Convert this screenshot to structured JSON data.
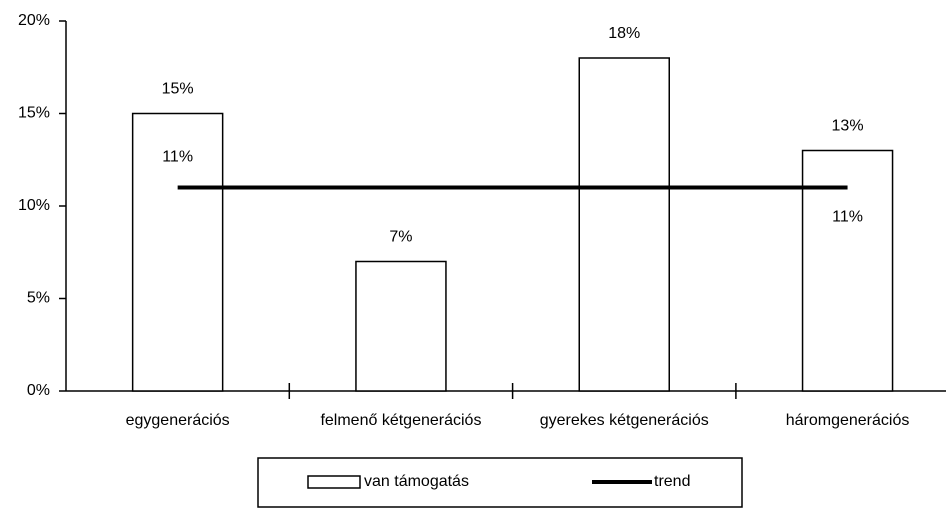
{
  "chart_data": {
    "type": "bar",
    "categories": [
      "egygenerációs",
      "felmenő kétgenerációs",
      "gyerekes kétgenerációs",
      "háromgenerációs"
    ],
    "series": [
      {
        "name": "van támogatás",
        "type": "bar",
        "color": "#ffffff",
        "values": [
          15,
          7,
          18,
          13
        ],
        "value_labels": [
          "15%",
          "7%",
          "18%",
          "13%"
        ]
      },
      {
        "name": "trend",
        "type": "line",
        "color": "#000000",
        "values": [
          11,
          11,
          11,
          11
        ],
        "value_labels": [
          "11%",
          null,
          null,
          "11%"
        ]
      }
    ],
    "ylim": [
      0,
      20
    ],
    "yticks": [
      {
        "value": 0,
        "label": "0%"
      },
      {
        "value": 5,
        "label": "5%"
      },
      {
        "value": 10,
        "label": "10%"
      },
      {
        "value": 15,
        "label": "15%"
      },
      {
        "value": 20,
        "label": "20%"
      }
    ],
    "grid": false,
    "legend": "bottom"
  }
}
